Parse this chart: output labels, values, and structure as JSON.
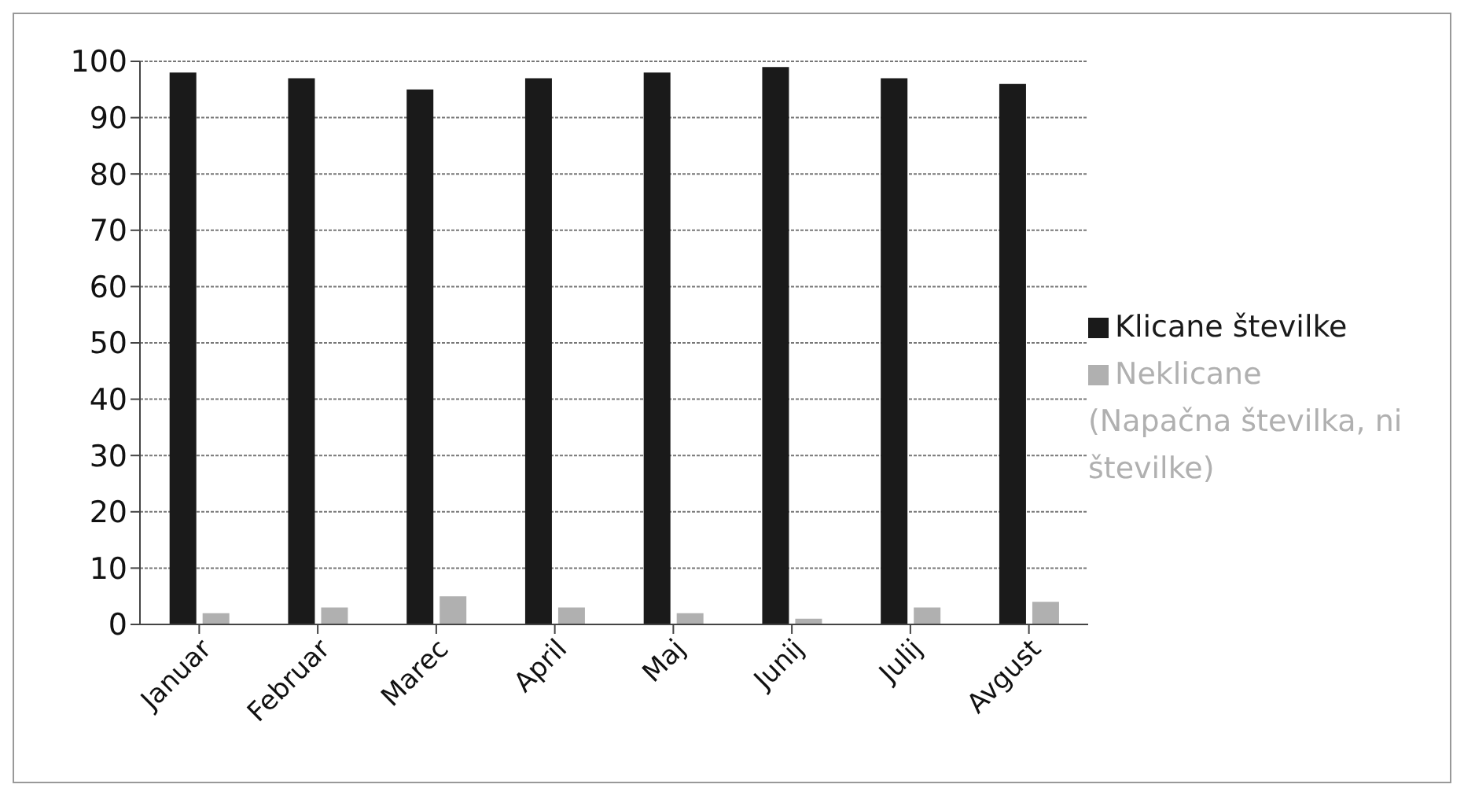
{
  "chart_data": {
    "type": "bar",
    "categories": [
      "Januar",
      "Februar",
      "Marec",
      "April",
      "Maj",
      "Junij",
      "Julij",
      "Avgust"
    ],
    "series": [
      {
        "name": "Klicane številke",
        "color": "#1a1a1a",
        "values": [
          98,
          97,
          95,
          97,
          98,
          99,
          97,
          96
        ]
      },
      {
        "name": "Neklicane (Napačna številka, ni številke)",
        "color": "#b0b0b0",
        "values": [
          2,
          3,
          5,
          3,
          2,
          1,
          3,
          4
        ]
      }
    ],
    "ylim": [
      0,
      100
    ],
    "yticks": [
      0,
      10,
      20,
      30,
      40,
      50,
      60,
      70,
      80,
      90,
      100
    ],
    "grid": "y",
    "legend": "right"
  }
}
